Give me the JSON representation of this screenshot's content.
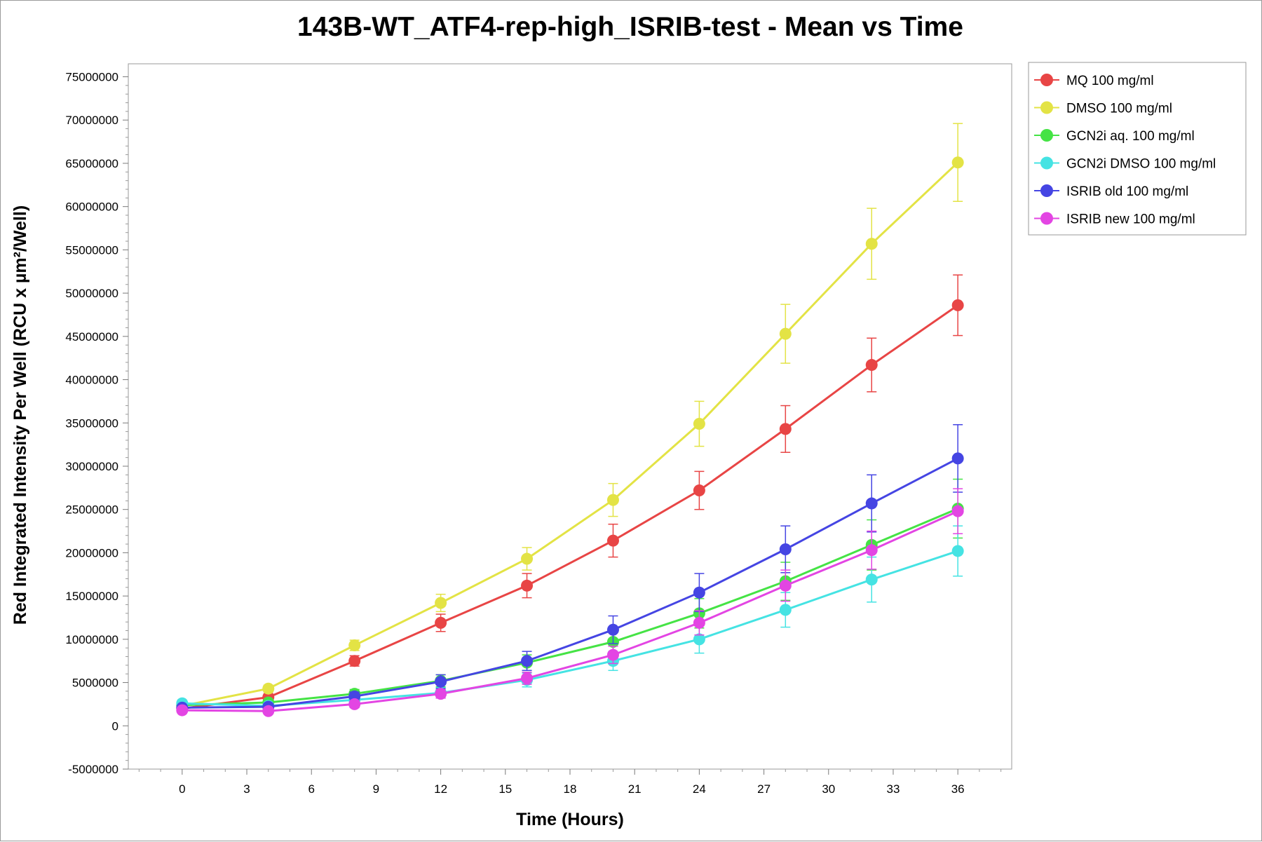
{
  "chart_data": {
    "type": "line",
    "title": "143B-WT_ATF4-rep-high_ISRIB-test - Mean vs Time",
    "xlabel": "Time (Hours)",
    "ylabel": "Red Integrated Intensity Per Well (RCU x µm²/Well)",
    "xlim": [
      -2.5,
      38.5
    ],
    "ylim": [
      -5000000,
      76500000
    ],
    "x_ticks": [
      0,
      3,
      6,
      9,
      12,
      15,
      18,
      21,
      24,
      27,
      30,
      33,
      36
    ],
    "x_tick_labels": [
      "0",
      "3",
      "6",
      "9",
      "12",
      "15",
      "18",
      "21",
      "24",
      "27",
      "30",
      "33",
      "36"
    ],
    "y_ticks": [
      -5000000,
      0,
      5000000,
      10000000,
      15000000,
      20000000,
      25000000,
      30000000,
      35000000,
      40000000,
      45000000,
      50000000,
      55000000,
      60000000,
      65000000,
      70000000,
      75000000
    ],
    "y_tick_labels": [
      "-5000000",
      "0",
      "5000000",
      "10000000",
      "15000000",
      "20000000",
      "25000000",
      "30000000",
      "35000000",
      "40000000",
      "45000000",
      "50000000",
      "55000000",
      "60000000",
      "65000000",
      "70000000",
      "75000000"
    ],
    "grid": false,
    "legend_position": "right-top",
    "x": [
      0,
      4,
      8,
      12,
      16,
      20,
      24,
      28,
      32,
      36
    ],
    "series": [
      {
        "name": "MQ 100 mg/ml",
        "color": "#e84545",
        "values": [
          2000000,
          3300000,
          7500000,
          11900000,
          16200000,
          21400000,
          27200000,
          34300000,
          41700000,
          48600000
        ],
        "errors": [
          300000,
          400000,
          600000,
          1000000,
          1400000,
          1900000,
          2200000,
          2700000,
          3100000,
          3500000
        ]
      },
      {
        "name": "DMSO 100 mg/ml",
        "color": "#e3e345",
        "values": [
          2300000,
          4300000,
          9300000,
          14200000,
          19300000,
          26100000,
          34900000,
          45300000,
          55700000,
          65100000
        ],
        "errors": [
          300000,
          400000,
          600000,
          1000000,
          1300000,
          1900000,
          2600000,
          3400000,
          4100000,
          4500000
        ]
      },
      {
        "name": "GCN2i aq. 100 mg/ml",
        "color": "#45e345",
        "values": [
          2400000,
          2700000,
          3700000,
          5200000,
          7300000,
          9700000,
          13000000,
          16700000,
          20900000,
          25100000
        ],
        "errors": [
          300000,
          300000,
          500000,
          700000,
          900000,
          1200000,
          1700000,
          2200000,
          2900000,
          3400000
        ]
      },
      {
        "name": "GCN2i DMSO 100 mg/ml",
        "color": "#45e3e3",
        "values": [
          2600000,
          2300000,
          3000000,
          3800000,
          5300000,
          7500000,
          10000000,
          13400000,
          16900000,
          20200000
        ],
        "errors": [
          300000,
          300000,
          400000,
          600000,
          800000,
          1100000,
          1600000,
          2000000,
          2600000,
          2900000
        ]
      },
      {
        "name": "ISRIB old 100 mg/ml",
        "color": "#4545e3",
        "values": [
          2100000,
          2200000,
          3400000,
          5100000,
          7500000,
          11100000,
          15400000,
          20400000,
          25700000,
          30900000
        ],
        "errors": [
          300000,
          400000,
          500000,
          800000,
          1100000,
          1600000,
          2200000,
          2700000,
          3300000,
          3900000
        ]
      },
      {
        "name": "ISRIB new 100 mg/ml",
        "color": "#e345e3",
        "values": [
          1800000,
          1700000,
          2500000,
          3700000,
          5500000,
          8200000,
          11900000,
          16200000,
          20300000,
          24800000
        ],
        "errors": [
          200000,
          200000,
          400000,
          500000,
          700000,
          1000000,
          1400000,
          1800000,
          2200000,
          2600000
        ]
      }
    ]
  }
}
